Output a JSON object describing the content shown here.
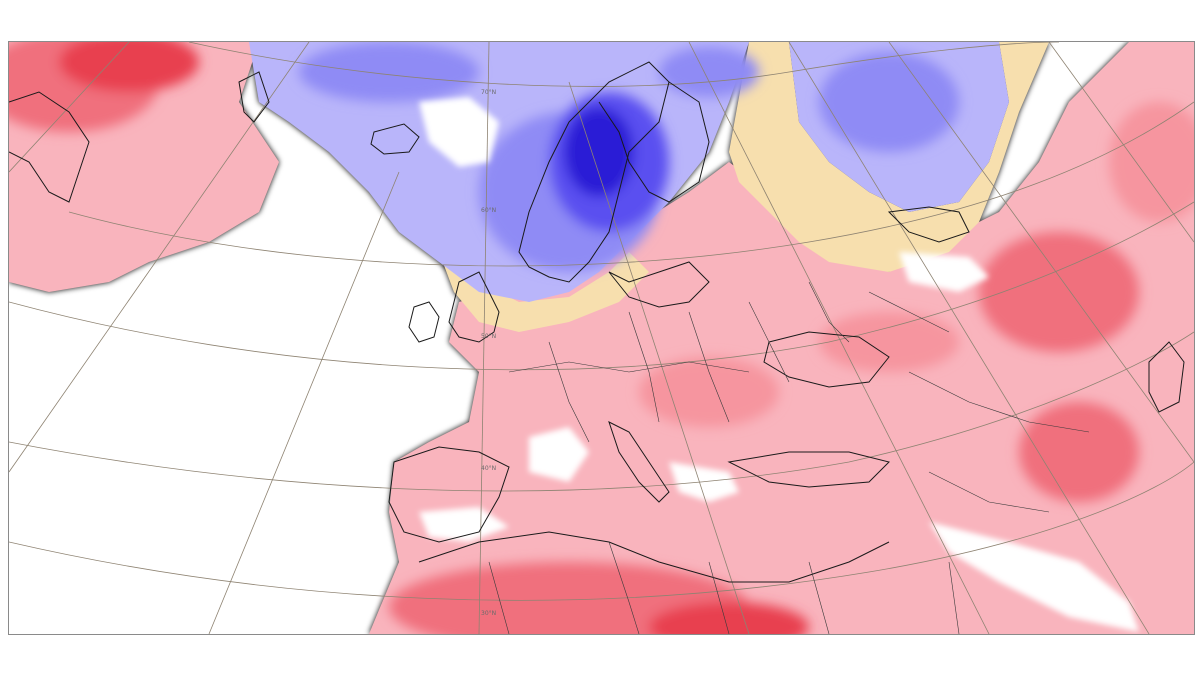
{
  "map": {
    "type": "anomaly-map",
    "region": "Europe",
    "colors": {
      "strong_negative": "#2b1fd6",
      "negative": "#5a4ff0",
      "mild_negative": "#8f8bf5",
      "weak_negative": "#b9b5fa",
      "near_zero_cool": "#f7dfae",
      "near_zero": "#ffffff",
      "weak_positive": "#f9b4bd",
      "mild_positive": "#f6959f",
      "positive": "#f06f7d",
      "strong_positive": "#e8414f",
      "coastline": "#1a1a1a",
      "graticule": "#8e8372"
    },
    "latitude_labels": [
      "70°N",
      "60°N",
      "50°N",
      "40°N",
      "30°N"
    ]
  }
}
